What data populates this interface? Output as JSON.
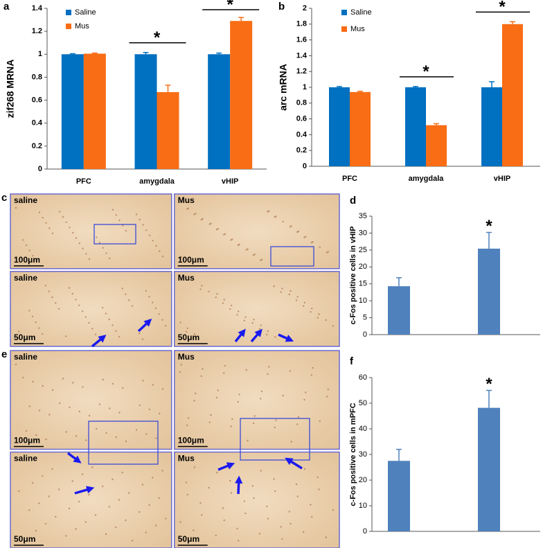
{
  "chart_data": [
    {
      "type": "bar",
      "panel": "a",
      "ylabel": "zif268 MRNA",
      "categories": [
        "PFC",
        "amygdala",
        "vHIP"
      ],
      "series": [
        {
          "name": "Saline",
          "color": "#0070c0",
          "values": [
            1,
            1,
            1
          ],
          "errors": [
            0.005,
            0.015,
            0.01
          ]
        },
        {
          "name": "Mus",
          "color": "#f96d15",
          "values": [
            1.005,
            0.67,
            1.29
          ],
          "errors": [
            0.005,
            0.06,
            0.03
          ]
        }
      ],
      "ylim": [
        0,
        1.4
      ],
      "yticks": [
        0,
        0.2,
        0.4,
        0.6,
        0.8,
        1,
        1.2,
        1.4
      ],
      "annotations": [
        {
          "text": "*",
          "category": "amygdala"
        },
        {
          "text": "*",
          "category": "vHIP"
        }
      ]
    },
    {
      "type": "bar",
      "panel": "b",
      "ylabel": "arc mRNA",
      "categories": [
        "PFC",
        "amygdala",
        "vHIP"
      ],
      "series": [
        {
          "name": "Saline",
          "color": "#0070c0",
          "values": [
            1,
            1,
            1
          ],
          "errors": [
            0.01,
            0.01,
            0.07
          ]
        },
        {
          "name": "Mus",
          "color": "#f96d15",
          "values": [
            0.94,
            0.52,
            1.8
          ],
          "errors": [
            0.01,
            0.02,
            0.03
          ]
        }
      ],
      "ylim": [
        0,
        2
      ],
      "yticks": [
        0,
        0.2,
        0.4,
        0.6,
        0.8,
        1,
        1.2,
        1.4,
        1.6,
        1.8,
        2
      ],
      "annotations": [
        {
          "text": "*",
          "category": "amygdala"
        },
        {
          "text": "*",
          "category": "vHIP"
        }
      ]
    },
    {
      "type": "bar",
      "panel": "d",
      "ylabel": "c-Fos positive cells in vHIP",
      "categories": [
        null,
        null
      ],
      "series": [
        {
          "color": "#4f81bd",
          "values": [
            14.3,
            25.4
          ],
          "errors": [
            2.5,
            4.8
          ]
        }
      ],
      "ylim": [
        0,
        35
      ],
      "yticks": [
        0,
        5,
        10,
        15,
        20,
        25,
        30,
        35
      ],
      "annotations": [
        {
          "text": "*",
          "index": 1
        }
      ]
    },
    {
      "type": "bar",
      "panel": "f",
      "ylabel": "c-Fos positive cells in mPFC",
      "categories": [
        null,
        null
      ],
      "series": [
        {
          "color": "#4f81bd",
          "values": [
            27.5,
            48.2
          ],
          "errors": [
            4.5,
            6.8
          ]
        }
      ],
      "ylim": [
        0,
        60
      ],
      "yticks": [
        0,
        10,
        20,
        30,
        40,
        50,
        60
      ],
      "annotations": [
        {
          "text": "*",
          "index": 1
        }
      ]
    }
  ],
  "micrographs": [
    {
      "letter": "c",
      "panels": [
        {
          "label": "saline",
          "scale": "100μm"
        },
        {
          "label": "Mus",
          "scale": "100μm"
        },
        {
          "label": "saline",
          "scale": "50μm"
        },
        {
          "label": "Mus",
          "scale": "50μm"
        }
      ]
    },
    {
      "letter": "e",
      "panels": [
        {
          "label": "saline",
          "scale": "100μm"
        },
        {
          "label": "Mus",
          "scale": "100μm"
        },
        {
          "label": "saline",
          "scale": "50μm"
        },
        {
          "label": "Mus",
          "scale": "50μm"
        }
      ]
    }
  ]
}
